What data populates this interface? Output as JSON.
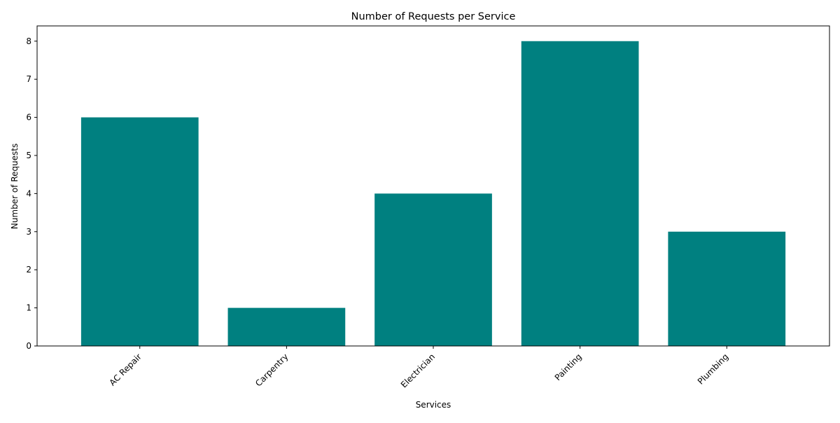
{
  "chart_data": {
    "type": "bar",
    "title": "Number of Requests per Service",
    "xlabel": "Services",
    "ylabel": "Number of Requests",
    "categories": [
      "AC Repair",
      "Carpentry",
      "Electrician",
      "Painting",
      "Plumbing"
    ],
    "values": [
      6,
      1,
      4,
      8,
      3
    ],
    "yticks": [
      "0",
      "1",
      "2",
      "3",
      "4",
      "5",
      "6",
      "7",
      "8"
    ],
    "ylim": [
      0,
      8.4
    ],
    "bar_color": "#008080",
    "grid": false,
    "legend": "none"
  }
}
